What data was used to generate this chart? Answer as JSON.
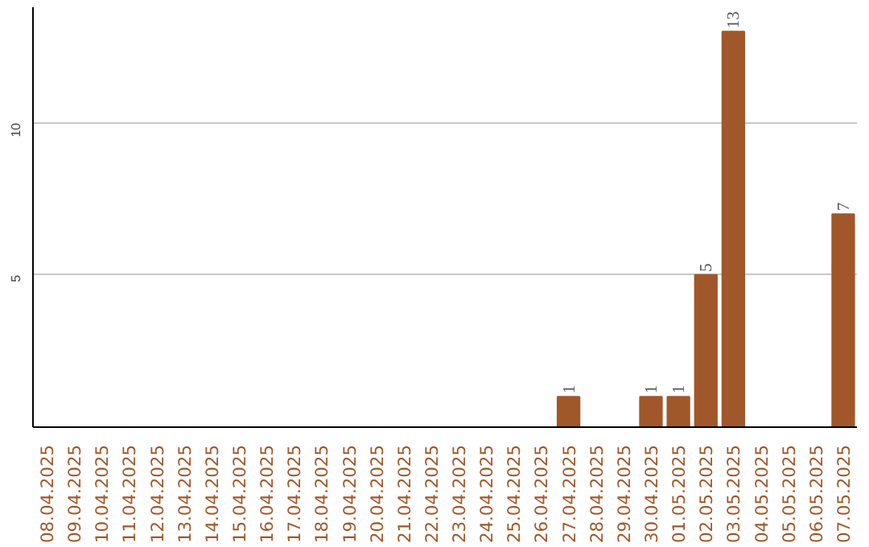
{
  "chart_data": {
    "type": "bar",
    "categories": [
      "08.04.2025",
      "09.04.2025",
      "10.04.2025",
      "11.04.2025",
      "12.04.2025",
      "13.04.2025",
      "14.04.2025",
      "15.04.2025",
      "16.04.2025",
      "17.04.2025",
      "18.04.2025",
      "19.04.2025",
      "20.04.2025",
      "21.04.2025",
      "22.04.2025",
      "23.04.2025",
      "24.04.2025",
      "25.04.2025",
      "26.04.2025",
      "27.04.2025",
      "28.04.2025",
      "29.04.2025",
      "30.04.2025",
      "01.05.2025",
      "02.05.2025",
      "03.05.2025",
      "04.05.2025",
      "05.05.2025",
      "06.05.2025",
      "07.05.2025"
    ],
    "values": [
      0,
      0,
      0,
      0,
      0,
      0,
      0,
      0,
      0,
      0,
      0,
      0,
      0,
      0,
      0,
      0,
      0,
      0,
      0,
      1,
      0,
      0,
      1,
      1,
      5,
      13,
      0,
      0,
      0,
      7
    ],
    "value_labels": [
      null,
      null,
      null,
      null,
      null,
      null,
      null,
      null,
      null,
      null,
      null,
      null,
      null,
      null,
      null,
      null,
      null,
      null,
      null,
      "1",
      null,
      null,
      "1",
      "1",
      "5",
      "13",
      null,
      null,
      null,
      "7"
    ],
    "color": "#a0582a",
    "ylim": [
      0,
      13.8
    ],
    "yticks": [
      5,
      10
    ],
    "grid": "y"
  }
}
